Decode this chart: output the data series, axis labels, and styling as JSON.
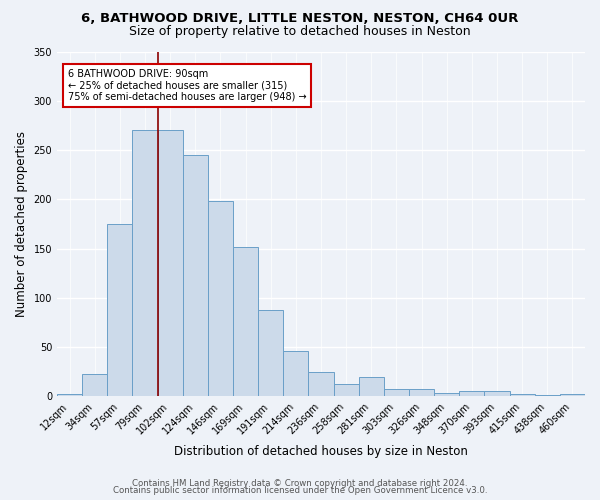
{
  "title1": "6, BATHWOOD DRIVE, LITTLE NESTON, NESTON, CH64 0UR",
  "title2": "Size of property relative to detached houses in Neston",
  "xlabel": "Distribution of detached houses by size in Neston",
  "ylabel": "Number of detached properties",
  "bar_labels": [
    "12sqm",
    "34sqm",
    "57sqm",
    "79sqm",
    "102sqm",
    "124sqm",
    "146sqm",
    "169sqm",
    "191sqm",
    "214sqm",
    "236sqm",
    "258sqm",
    "281sqm",
    "303sqm",
    "326sqm",
    "348sqm",
    "370sqm",
    "393sqm",
    "415sqm",
    "438sqm",
    "460sqm"
  ],
  "bar_values": [
    2,
    23,
    175,
    270,
    270,
    245,
    198,
    152,
    88,
    46,
    25,
    13,
    20,
    7,
    8,
    3,
    5,
    5,
    2,
    1,
    2
  ],
  "bar_color": "#ccdaea",
  "bar_edge_color": "#6a9fc8",
  "vline_color": "#8b0000",
  "annotation_text": "6 BATHWOOD DRIVE: 90sqm\n← 25% of detached houses are smaller (315)\n75% of semi-detached houses are larger (948) →",
  "annotation_box_color": "white",
  "annotation_box_edge": "#cc0000",
  "ylim": [
    0,
    350
  ],
  "yticks": [
    0,
    50,
    100,
    150,
    200,
    250,
    300,
    350
  ],
  "footer1": "Contains HM Land Registry data © Crown copyright and database right 2024.",
  "footer2": "Contains public sector information licensed under the Open Government Licence v3.0.",
  "bg_color": "#eef2f8",
  "grid_color": "white",
  "title1_fontsize": 9.5,
  "title2_fontsize": 9,
  "axis_label_fontsize": 8.5,
  "tick_fontsize": 7,
  "annot_fontsize": 7,
  "footer_fontsize": 6.2
}
